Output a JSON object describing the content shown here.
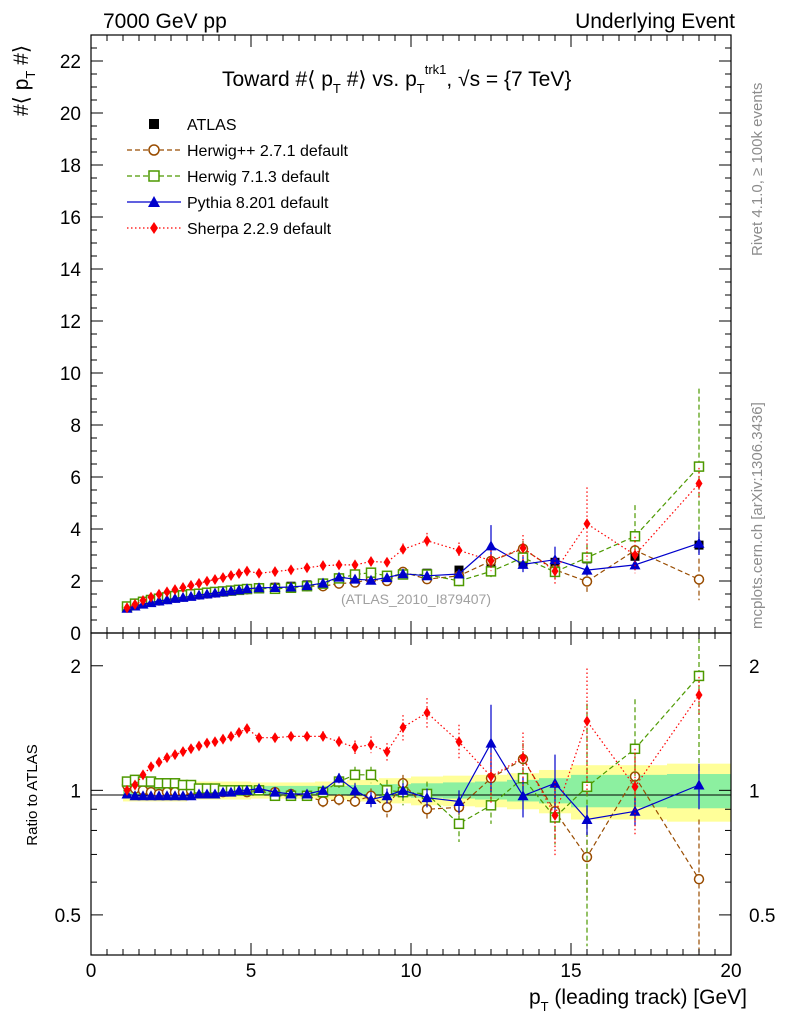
{
  "header": {
    "left": "7000 GeV pp",
    "right": "Underlying Event",
    "title_prefix": "Toward #⟨ p",
    "title_sub1": "T",
    "title_mid": " #⟩ vs. p",
    "title_sub2": "T",
    "title_sup": "trk1",
    "title_suffix": ", √s = {7 TeV}"
  },
  "watermark": "(ATLAS_2010_I879407)",
  "side": {
    "rivet": "Rivet 4.1.0, ≥ 100k events",
    "mcplots": "mcplots.cern.ch [arXiv:1306.3436]"
  },
  "colors": {
    "atlas": "#000000",
    "herwigpp": "#994C00",
    "herwig7": "#4D9900",
    "pythia": "#0000CC",
    "sherpa": "#FF0000",
    "band_inner": "#8CF0A0",
    "band_outer": "#FFFF99"
  },
  "chart_data": [
    {
      "type": "scatter",
      "panel": "main",
      "ylabel": "#⟨ p_T #⟩",
      "ylabel_main": "#⟨ p",
      "ylabel_sub": "T",
      "ylabel_end": " #⟩",
      "xlim": [
        0,
        20
      ],
      "ylim": [
        0,
        23
      ],
      "yticks": [
        0,
        2,
        4,
        6,
        8,
        10,
        12,
        14,
        16,
        18,
        20,
        22
      ],
      "x": [
        1.125,
        1.375,
        1.625,
        1.875,
        2.125,
        2.375,
        2.625,
        2.875,
        3.125,
        3.375,
        3.625,
        3.875,
        4.125,
        4.375,
        4.625,
        4.875,
        5.25,
        5.75,
        6.25,
        6.75,
        7.25,
        7.75,
        8.25,
        8.75,
        9.25,
        9.75,
        10.5,
        11.5,
        12.5,
        13.5,
        14.5,
        15.5,
        17.0,
        19.0
      ],
      "series": [
        {
          "name": "ATLAS",
          "key": "atlas",
          "marker": "square",
          "line": "none",
          "values": [
            0.97,
            1.07,
            1.14,
            1.21,
            1.27,
            1.32,
            1.37,
            1.41,
            1.45,
            1.49,
            1.53,
            1.57,
            1.6,
            1.63,
            1.66,
            1.69,
            1.72,
            1.76,
            1.8,
            1.85,
            1.92,
            2.0,
            2.06,
            2.13,
            2.2,
            2.27,
            2.3,
            2.42,
            2.58,
            2.72,
            2.72,
            2.85,
            2.95,
            3.38
          ],
          "errors": [
            0.03,
            0.03,
            0.03,
            0.03,
            0.03,
            0.03,
            0.03,
            0.03,
            0.03,
            0.03,
            0.03,
            0.03,
            0.03,
            0.03,
            0.03,
            0.03,
            0.04,
            0.05,
            0.05,
            0.06,
            0.07,
            0.07,
            0.08,
            0.08,
            0.09,
            0.1,
            0.12,
            0.13,
            0.18,
            0.2,
            0.23,
            0.26,
            0.28,
            0.32
          ]
        },
        {
          "name": "Herwig++ 2.7.1 default",
          "key": "herwigpp",
          "marker": "circle-open",
          "line": "dashed",
          "values": [
            1.0,
            1.08,
            1.15,
            1.2,
            1.25,
            1.31,
            1.36,
            1.4,
            1.45,
            1.48,
            1.52,
            1.56,
            1.59,
            1.63,
            1.66,
            1.68,
            1.72,
            1.74,
            1.76,
            1.8,
            1.8,
            1.9,
            1.94,
            2.07,
            2.0,
            2.35,
            2.07,
            2.2,
            2.77,
            3.24,
            2.43,
            1.98,
            3.18,
            2.06
          ],
          "errors": [
            0.02,
            0.02,
            0.02,
            0.02,
            0.02,
            0.02,
            0.02,
            0.02,
            0.02,
            0.02,
            0.02,
            0.02,
            0.02,
            0.02,
            0.02,
            0.02,
            0.03,
            0.03,
            0.04,
            0.04,
            0.06,
            0.07,
            0.08,
            0.09,
            0.1,
            0.12,
            0.13,
            0.16,
            0.25,
            0.3,
            0.35,
            0.4,
            0.5,
            0.8
          ]
        },
        {
          "name": "Herwig 7.1.3 default",
          "key": "herwig7",
          "marker": "square-open",
          "line": "dashed",
          "values": [
            1.02,
            1.13,
            1.2,
            1.27,
            1.32,
            1.37,
            1.42,
            1.45,
            1.49,
            1.51,
            1.55,
            1.58,
            1.6,
            1.63,
            1.66,
            1.69,
            1.72,
            1.7,
            1.74,
            1.8,
            1.9,
            2.1,
            2.25,
            2.32,
            2.2,
            2.25,
            2.25,
            2.0,
            2.37,
            2.9,
            2.35,
            2.9,
            3.72,
            6.4
          ],
          "errors": [
            0.02,
            0.02,
            0.02,
            0.02,
            0.02,
            0.02,
            0.02,
            0.02,
            0.02,
            0.02,
            0.02,
            0.02,
            0.02,
            0.02,
            0.02,
            0.02,
            0.03,
            0.03,
            0.04,
            0.04,
            0.06,
            0.08,
            0.1,
            0.12,
            0.12,
            0.15,
            0.15,
            0.2,
            0.22,
            0.3,
            0.3,
            0.5,
            1.2,
            3.0
          ]
        },
        {
          "name": "Pythia 8.201 default",
          "key": "pythia",
          "marker": "triangle",
          "line": "solid",
          "values": [
            0.95,
            1.04,
            1.11,
            1.17,
            1.23,
            1.28,
            1.33,
            1.37,
            1.41,
            1.46,
            1.5,
            1.54,
            1.58,
            1.62,
            1.66,
            1.7,
            1.74,
            1.75,
            1.77,
            1.82,
            1.92,
            2.15,
            2.07,
            2.03,
            2.13,
            2.28,
            2.2,
            2.27,
            3.35,
            2.64,
            2.82,
            2.42,
            2.62,
            3.45
          ],
          "errors": [
            0.02,
            0.02,
            0.02,
            0.02,
            0.02,
            0.02,
            0.02,
            0.02,
            0.02,
            0.02,
            0.02,
            0.02,
            0.02,
            0.02,
            0.02,
            0.02,
            0.03,
            0.03,
            0.04,
            0.04,
            0.05,
            0.07,
            0.08,
            0.09,
            0.1,
            0.1,
            0.12,
            0.15,
            0.8,
            0.3,
            0.5,
            0.2,
            0.2,
            0.45
          ]
        },
        {
          "name": "Sherpa 2.2.9 default",
          "key": "sherpa",
          "marker": "diamond",
          "line": "dotted",
          "values": [
            0.97,
            1.1,
            1.25,
            1.38,
            1.49,
            1.58,
            1.67,
            1.75,
            1.83,
            1.91,
            1.99,
            2.06,
            2.13,
            2.21,
            2.29,
            2.38,
            2.3,
            2.36,
            2.43,
            2.51,
            2.59,
            2.62,
            2.62,
            2.75,
            2.72,
            3.22,
            3.55,
            3.18,
            2.78,
            3.27,
            2.38,
            4.2,
            3.0,
            5.75
          ],
          "errors": [
            0.02,
            0.02,
            0.02,
            0.02,
            0.02,
            0.02,
            0.02,
            0.02,
            0.02,
            0.02,
            0.02,
            0.02,
            0.02,
            0.02,
            0.02,
            0.02,
            0.05,
            0.05,
            0.06,
            0.06,
            0.07,
            0.08,
            0.1,
            0.12,
            0.14,
            0.22,
            0.3,
            0.3,
            0.4,
            0.5,
            0.5,
            1.4,
            0.7,
            0.6
          ]
        }
      ]
    },
    {
      "type": "scatter",
      "panel": "ratio",
      "ylabel": "Ratio to ATLAS",
      "xlabel": "p_T (leading track) [GeV]",
      "xlabel_main": "p",
      "xlabel_sub": "T",
      "xlabel_end": " (leading track) [GeV]",
      "xlim": [
        0,
        20
      ],
      "ylim": [
        0.4,
        2.4
      ],
      "yscale": "log",
      "xticks": [
        0,
        5,
        10,
        15,
        20
      ],
      "yticks": [
        0.5,
        1,
        2
      ],
      "x": [
        1.125,
        1.375,
        1.625,
        1.875,
        2.125,
        2.375,
        2.625,
        2.875,
        3.125,
        3.375,
        3.625,
        3.875,
        4.125,
        4.375,
        4.625,
        4.875,
        5.25,
        5.75,
        6.25,
        6.75,
        7.25,
        7.75,
        8.25,
        8.75,
        9.25,
        9.75,
        10.5,
        11.5,
        12.5,
        13.5,
        14.5,
        15.5,
        17.0,
        19.0
      ],
      "bands": {
        "edges": [
          1.0,
          2.0,
          3.0,
          4.0,
          5.0,
          6.0,
          7.0,
          8.0,
          9.0,
          10.0,
          11.0,
          12.0,
          13.0,
          14.0,
          15.0,
          16.0,
          18.0,
          20.0
        ],
        "inner": [
          0.03,
          0.03,
          0.03,
          0.03,
          0.025,
          0.025,
          0.025,
          0.03,
          0.035,
          0.04,
          0.045,
          0.05,
          0.06,
          0.07,
          0.09,
          0.09,
          0.095
        ],
        "outer": [
          0.06,
          0.06,
          0.05,
          0.05,
          0.045,
          0.045,
          0.05,
          0.06,
          0.07,
          0.08,
          0.085,
          0.09,
          0.1,
          0.12,
          0.15,
          0.15,
          0.16
        ]
      },
      "series": [
        {
          "name": "Herwig++ 2.7.1 default",
          "key": "herwigpp",
          "marker": "circle-open",
          "line": "dashed",
          "values": [
            1.03,
            1.01,
            1.0,
            0.99,
            0.98,
            0.99,
            0.99,
            0.99,
            1.0,
            0.99,
            0.99,
            0.99,
            0.99,
            1.0,
            1.0,
            0.99,
            1.0,
            0.99,
            0.98,
            0.97,
            0.94,
            0.95,
            0.94,
            0.97,
            0.91,
            1.04,
            0.9,
            0.91,
            1.07,
            1.19,
            0.89,
            0.69,
            1.08,
            0.61
          ],
          "errors": [
            0.01,
            0.01,
            0.01,
            0.01,
            0.01,
            0.01,
            0.01,
            0.01,
            0.01,
            0.01,
            0.01,
            0.01,
            0.01,
            0.01,
            0.01,
            0.01,
            0.01,
            0.01,
            0.02,
            0.02,
            0.03,
            0.03,
            0.04,
            0.04,
            0.05,
            0.05,
            0.06,
            0.07,
            0.1,
            0.11,
            0.13,
            0.14,
            0.17,
            0.24
          ]
        },
        {
          "name": "Herwig 7.1.3 default",
          "key": "herwig7",
          "marker": "square-open",
          "line": "dashed",
          "values": [
            1.05,
            1.06,
            1.05,
            1.05,
            1.04,
            1.04,
            1.04,
            1.03,
            1.03,
            1.01,
            1.01,
            1.01,
            1.0,
            1.0,
            1.0,
            1.0,
            1.0,
            0.97,
            0.97,
            0.97,
            0.99,
            1.05,
            1.09,
            1.09,
            1.0,
            0.99,
            0.98,
            0.83,
            0.92,
            1.07,
            0.86,
            1.02,
            1.26,
            1.89
          ],
          "errors": [
            0.02,
            0.02,
            0.02,
            0.02,
            0.02,
            0.02,
            0.02,
            0.02,
            0.02,
            0.02,
            0.02,
            0.02,
            0.02,
            0.02,
            0.02,
            0.02,
            0.02,
            0.02,
            0.02,
            0.02,
            0.03,
            0.04,
            0.05,
            0.05,
            0.06,
            0.07,
            0.07,
            0.08,
            0.09,
            0.11,
            0.12,
            0.6,
            0.4,
            0.9
          ]
        },
        {
          "name": "Pythia 8.201 default",
          "key": "pythia",
          "marker": "triangle",
          "line": "solid",
          "values": [
            0.98,
            0.97,
            0.97,
            0.97,
            0.97,
            0.97,
            0.97,
            0.97,
            0.97,
            0.98,
            0.98,
            0.98,
            0.99,
            0.99,
            1.0,
            1.0,
            1.01,
            0.99,
            0.98,
            0.98,
            1.0,
            1.07,
            1.0,
            0.95,
            0.97,
            1.0,
            0.96,
            0.94,
            1.3,
            0.97,
            1.04,
            0.85,
            0.89,
            1.03
          ],
          "errors": [
            0.01,
            0.01,
            0.01,
            0.01,
            0.01,
            0.01,
            0.01,
            0.01,
            0.01,
            0.01,
            0.01,
            0.01,
            0.01,
            0.01,
            0.01,
            0.01,
            0.01,
            0.01,
            0.02,
            0.02,
            0.02,
            0.03,
            0.04,
            0.04,
            0.04,
            0.04,
            0.05,
            0.06,
            0.31,
            0.11,
            0.18,
            0.07,
            0.07,
            0.13
          ]
        },
        {
          "name": "Sherpa 2.2.9 default",
          "key": "sherpa",
          "marker": "diamond",
          "line": "dotted",
          "values": [
            1.0,
            1.03,
            1.09,
            1.14,
            1.17,
            1.2,
            1.22,
            1.24,
            1.26,
            1.28,
            1.3,
            1.31,
            1.33,
            1.35,
            1.38,
            1.41,
            1.34,
            1.34,
            1.35,
            1.35,
            1.35,
            1.31,
            1.27,
            1.29,
            1.24,
            1.42,
            1.54,
            1.31,
            1.08,
            1.2,
            0.87,
            1.47,
            1.02,
            1.7
          ],
          "errors": [
            0.01,
            0.01,
            0.01,
            0.01,
            0.01,
            0.01,
            0.01,
            0.01,
            0.01,
            0.01,
            0.01,
            0.01,
            0.01,
            0.01,
            0.01,
            0.01,
            0.03,
            0.03,
            0.03,
            0.03,
            0.04,
            0.04,
            0.05,
            0.06,
            0.06,
            0.1,
            0.13,
            0.13,
            0.15,
            0.18,
            0.18,
            0.5,
            0.24,
            0.18
          ]
        }
      ]
    }
  ]
}
